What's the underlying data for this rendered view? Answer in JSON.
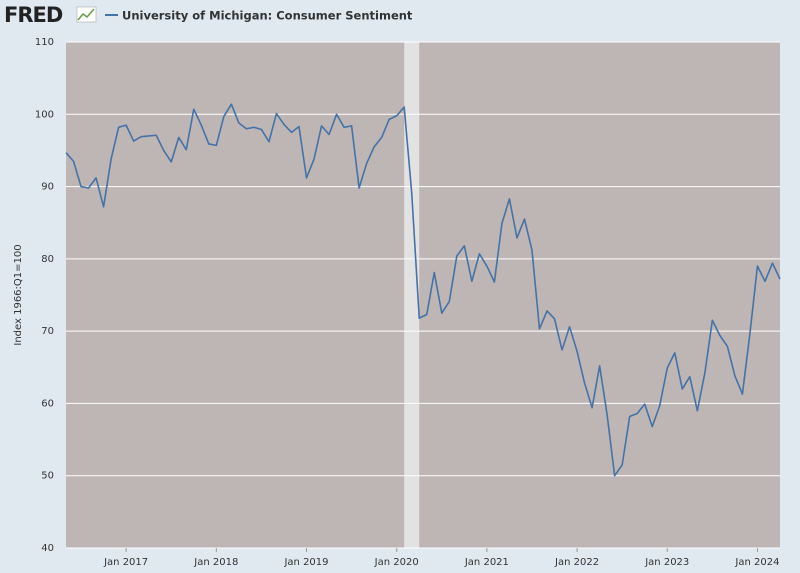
{
  "chart_data": {
    "type": "line",
    "logo": "FRED",
    "ylabel": "Index 1966:Q1=100",
    "x": [
      "2016-05",
      "2016-06",
      "2016-07",
      "2016-08",
      "2016-09",
      "2016-10",
      "2016-11",
      "2016-12",
      "2017-01",
      "2017-02",
      "2017-03",
      "2017-04",
      "2017-05",
      "2017-06",
      "2017-07",
      "2017-08",
      "2017-09",
      "2017-10",
      "2017-11",
      "2017-12",
      "2018-01",
      "2018-02",
      "2018-03",
      "2018-04",
      "2018-05",
      "2018-06",
      "2018-07",
      "2018-08",
      "2018-09",
      "2018-10",
      "2018-11",
      "2018-12",
      "2019-01",
      "2019-02",
      "2019-03",
      "2019-04",
      "2019-05",
      "2019-06",
      "2019-07",
      "2019-08",
      "2019-09",
      "2019-10",
      "2019-11",
      "2019-12",
      "2020-01",
      "2020-02",
      "2020-03",
      "2020-04",
      "2020-05",
      "2020-06",
      "2020-07",
      "2020-08",
      "2020-09",
      "2020-10",
      "2020-11",
      "2020-12",
      "2021-01",
      "2021-02",
      "2021-03",
      "2021-04",
      "2021-05",
      "2021-06",
      "2021-07",
      "2021-08",
      "2021-09",
      "2021-10",
      "2021-11",
      "2021-12",
      "2022-01",
      "2022-02",
      "2022-03",
      "2022-04",
      "2022-05",
      "2022-06",
      "2022-07",
      "2022-08",
      "2022-09",
      "2022-10",
      "2022-11",
      "2022-12",
      "2023-01",
      "2023-02",
      "2023-03",
      "2023-04",
      "2023-05",
      "2023-06",
      "2023-07",
      "2023-08",
      "2023-09",
      "2023-10",
      "2023-11",
      "2023-12",
      "2024-01",
      "2024-02",
      "2024-03",
      "2024-04"
    ],
    "series": [
      {
        "name": "University of Michigan: Consumer Sentiment",
        "color": "#4572a7",
        "values": [
          94.7,
          93.5,
          90.0,
          89.8,
          91.2,
          87.2,
          93.8,
          98.2,
          98.5,
          96.3,
          96.9,
          97.0,
          97.1,
          95.0,
          93.4,
          96.8,
          95.1,
          100.7,
          98.5,
          95.9,
          95.7,
          99.7,
          101.4,
          98.8,
          98.0,
          98.2,
          97.9,
          96.2,
          100.1,
          98.6,
          97.5,
          98.3,
          91.2,
          93.8,
          98.4,
          97.2,
          100.0,
          98.2,
          98.4,
          89.8,
          93.2,
          95.5,
          96.8,
          99.3,
          99.8,
          101.0,
          89.1,
          71.8,
          72.3,
          78.1,
          72.5,
          74.1,
          80.4,
          81.8,
          76.9,
          80.7,
          79.0,
          76.8,
          84.9,
          88.3,
          82.9,
          85.5,
          81.2,
          70.3,
          72.8,
          71.7,
          67.4,
          70.6,
          67.2,
          62.8,
          59.4,
          65.2,
          58.4,
          50.0,
          51.5,
          58.2,
          58.6,
          59.9,
          56.8,
          59.7,
          64.9,
          67.0,
          62.0,
          63.7,
          59.0,
          64.2,
          71.5,
          69.4,
          67.9,
          63.8,
          61.3,
          69.7,
          79.0,
          76.9,
          79.4,
          77.2
        ]
      }
    ],
    "shaded_range": [
      "2020-02",
      "2020-04"
    ],
    "xlim": [
      "2016-05",
      "2024-04"
    ],
    "xticks": [
      {
        "value": "2017-01",
        "label": "Jan 2017"
      },
      {
        "value": "2018-01",
        "label": "Jan 2018"
      },
      {
        "value": "2019-01",
        "label": "Jan 2019"
      },
      {
        "value": "2020-01",
        "label": "Jan 2020"
      },
      {
        "value": "2021-01",
        "label": "Jan 2021"
      },
      {
        "value": "2022-01",
        "label": "Jan 2022"
      },
      {
        "value": "2023-01",
        "label": "Jan 2023"
      },
      {
        "value": "2024-01",
        "label": "Jan 2024"
      }
    ],
    "ylim": [
      40,
      110
    ],
    "yticks": [
      40,
      50,
      60,
      70,
      80,
      90,
      100,
      110
    ],
    "grid": true
  }
}
